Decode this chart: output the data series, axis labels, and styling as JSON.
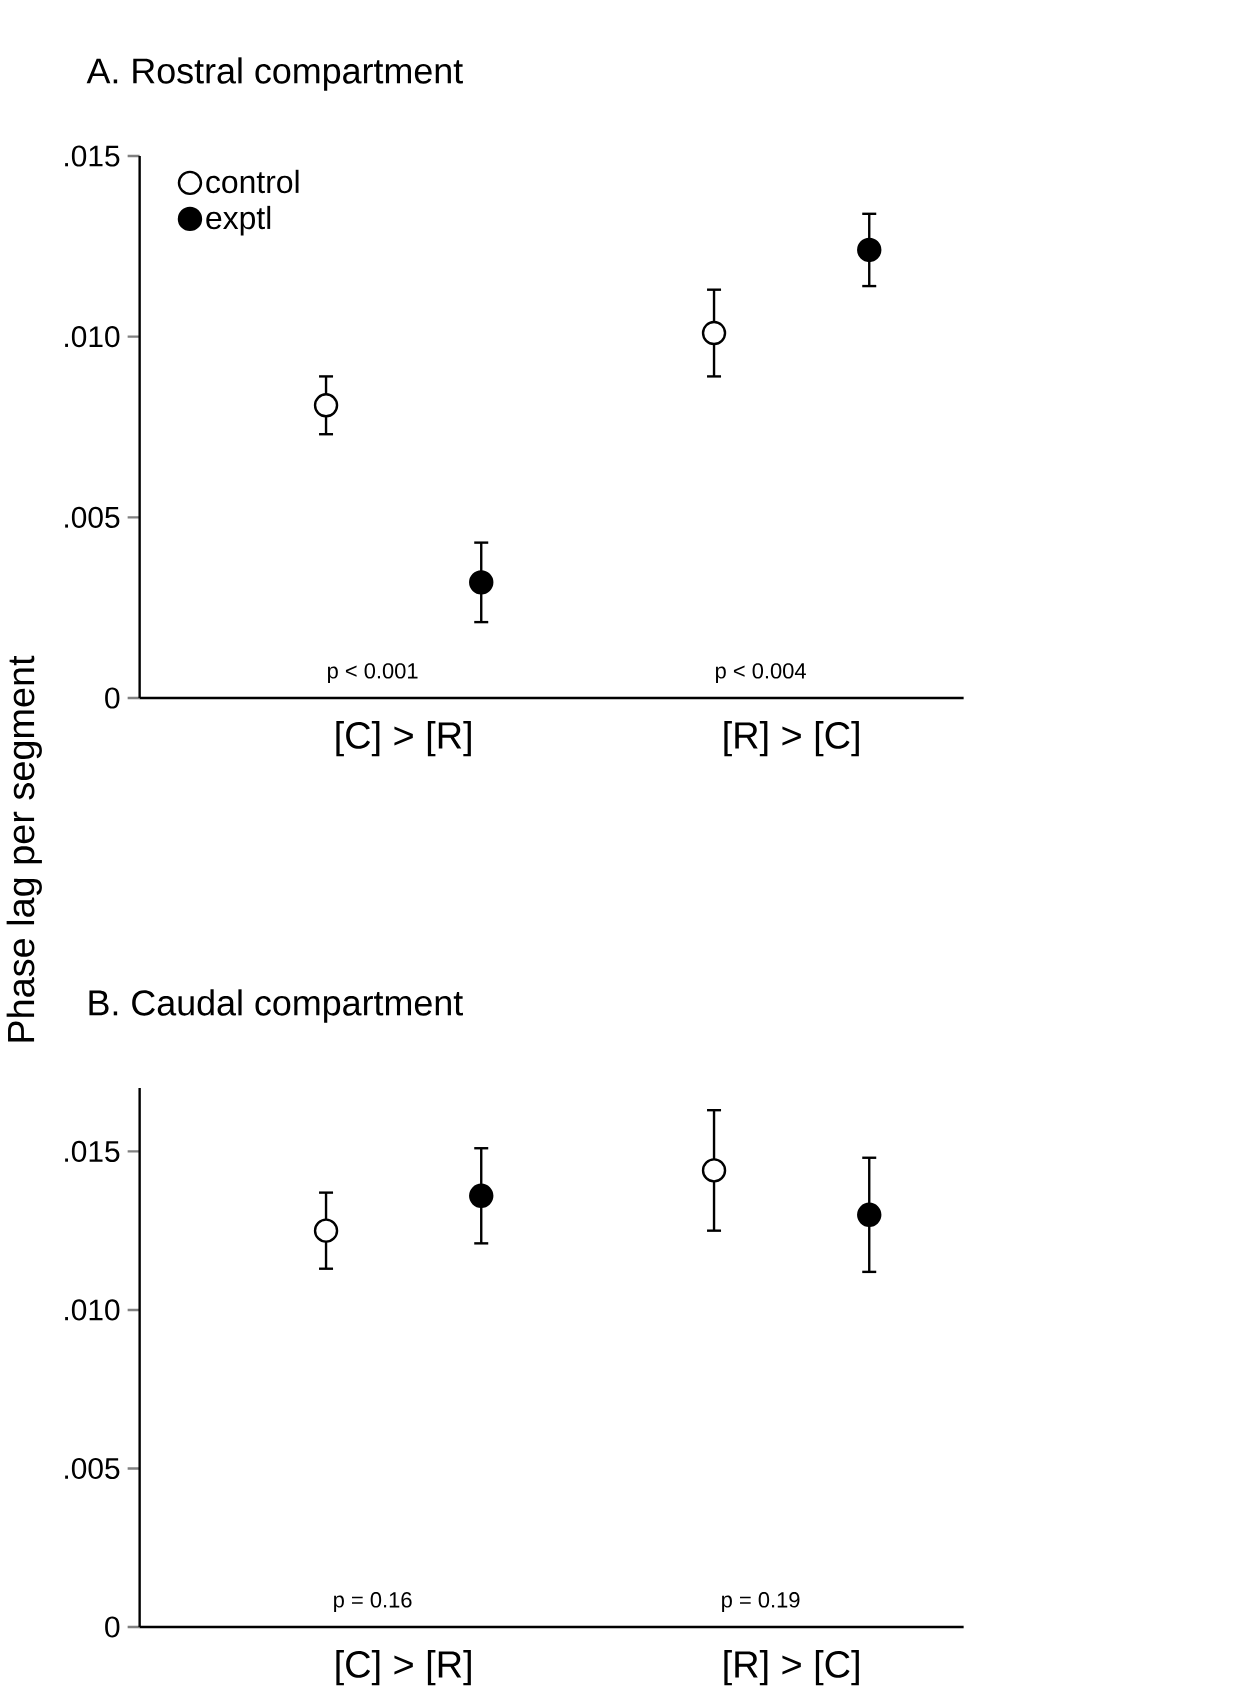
{
  "chart_data": [
    {
      "type": "scatter",
      "title": "A. Rostral compartment",
      "ylabel": "Phase lag per segment",
      "categories": [
        "[C] > [R]",
        "[R] > [C]"
      ],
      "series": [
        {
          "name": "control",
          "color": "#ffffff",
          "values": [
            0.0081,
            0.0101
          ],
          "errors": [
            0.0008,
            0.0012
          ]
        },
        {
          "name": "exptl",
          "color": "#000000",
          "values": [
            0.0032,
            0.0124
          ],
          "errors": [
            0.0011,
            0.001
          ]
        }
      ],
      "ylim": [
        0,
        0.015
      ],
      "yticks": [
        0,
        {
          "value": 0.005,
          "label": ".005"
        },
        {
          "value": 0.01,
          "label": ".010"
        },
        {
          "value": 0.015,
          "label": ".015"
        }
      ],
      "legend": "top left",
      "marker": "circle",
      "annotations": [
        "p < 0.001",
        "p < 0.004"
      ]
    },
    {
      "type": "scatter",
      "title": "B. Caudal compartment",
      "categories": [
        "[C] > [R]",
        "[R] > [C]"
      ],
      "series": [
        {
          "color": "#ffffff",
          "values": [
            0.0125,
            0.0144
          ],
          "errors": [
            0.0012,
            0.0019
          ]
        },
        {
          "color": "#000000",
          "values": [
            0.0136,
            0.013
          ],
          "errors": [
            0.0015,
            0.0018
          ]
        }
      ],
      "ylim": [
        0,
        0.017
      ],
      "yticks": [
        0,
        {
          "value": 0.005,
          "label": ".005"
        },
        {
          "value": 0.01,
          "label": ".010"
        },
        {
          "value": 0.015,
          "label": ".015"
        }
      ],
      "legend": false,
      "marker": "circle",
      "annotations": [
        "p = 0.16",
        "p = 0.19"
      ]
    }
  ]
}
